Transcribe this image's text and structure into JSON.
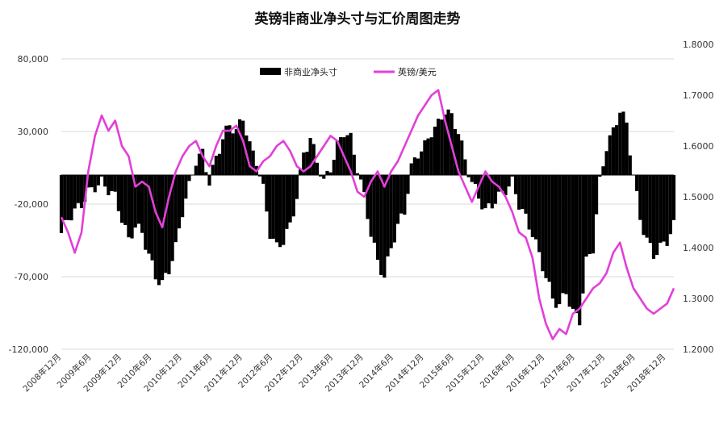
{
  "chart_data": {
    "type": "bar+line",
    "title": "英镑非商业净头寸与汇价周图走势",
    "x_tick_labels": [
      "2008年12月",
      "2009年6月",
      "2009年12月",
      "2010年6月",
      "2010年12月",
      "2011年6月",
      "2011年12月",
      "2012年6月",
      "2012年12月",
      "2013年6月",
      "2013年12月",
      "2014年6月",
      "2014年12月",
      "2015年6月",
      "2015年12月",
      "2016年6月",
      "2016年12月",
      "2017年6月",
      "2017年12月",
      "2018年6月",
      "2018年12月"
    ],
    "y_left": {
      "ticks": [
        "80,000",
        "30,000",
        "-20,000",
        "-70,000",
        "-120,000"
      ],
      "tick_values": [
        80000,
        30000,
        -20000,
        -70000,
        -120000
      ],
      "range": [
        -120000,
        80000
      ]
    },
    "y_right": {
      "ticks": [
        "1.8000",
        "1.7000",
        "1.6000",
        "1.5000",
        "1.4000",
        "1.3000",
        "1.2000"
      ],
      "tick_values": [
        1.8,
        1.7,
        1.6,
        1.5,
        1.4,
        1.3,
        1.2
      ],
      "range": [
        1.2,
        1.8
      ]
    },
    "legend": {
      "position": "top-center"
    },
    "grid": true,
    "series": [
      {
        "name": "非商业净头寸",
        "axis": "left",
        "kind": "bar",
        "color": "#000000",
        "points": [
          [
            0,
            -40000
          ],
          [
            2,
            -30000
          ],
          [
            4,
            -25000
          ],
          [
            6,
            -20000
          ],
          [
            8,
            -12000
          ],
          [
            10,
            -8000
          ],
          [
            12,
            -5000
          ],
          [
            14,
            -10000
          ],
          [
            16,
            -15000
          ],
          [
            18,
            -30000
          ],
          [
            20,
            -45000
          ],
          [
            22,
            -35000
          ],
          [
            24,
            -40000
          ],
          [
            26,
            -55000
          ],
          [
            28,
            -70000
          ],
          [
            30,
            -75000
          ],
          [
            32,
            -65000
          ],
          [
            34,
            -50000
          ],
          [
            36,
            -25000
          ],
          [
            38,
            -8000
          ],
          [
            40,
            10000
          ],
          [
            42,
            15000
          ],
          [
            44,
            -5000
          ],
          [
            46,
            12000
          ],
          [
            48,
            25000
          ],
          [
            50,
            35000
          ],
          [
            52,
            30000
          ],
          [
            54,
            40000
          ],
          [
            56,
            20000
          ],
          [
            58,
            10000
          ],
          [
            60,
            -10000
          ],
          [
            62,
            -40000
          ],
          [
            64,
            -50000
          ],
          [
            66,
            -45000
          ],
          [
            68,
            -35000
          ],
          [
            70,
            -15000
          ],
          [
            72,
            15000
          ],
          [
            74,
            25000
          ],
          [
            76,
            10000
          ],
          [
            78,
            -5000
          ],
          [
            80,
            5000
          ],
          [
            82,
            20000
          ],
          [
            84,
            30000
          ],
          [
            86,
            25000
          ],
          [
            88,
            5000
          ],
          [
            90,
            -15000
          ],
          [
            92,
            -40000
          ],
          [
            94,
            -60000
          ],
          [
            96,
            -70000
          ],
          [
            98,
            -50000
          ],
          [
            100,
            -35000
          ],
          [
            102,
            -25000
          ],
          [
            104,
            5000
          ],
          [
            106,
            15000
          ],
          [
            108,
            20000
          ],
          [
            110,
            30000
          ],
          [
            112,
            35000
          ],
          [
            114,
            45000
          ],
          [
            116,
            40000
          ],
          [
            118,
            30000
          ],
          [
            120,
            10000
          ],
          [
            122,
            -5000
          ],
          [
            124,
            -15000
          ],
          [
            126,
            -25000
          ],
          [
            128,
            -20000
          ],
          [
            130,
            -15000
          ],
          [
            132,
            -10000
          ],
          [
            134,
            -5000
          ],
          [
            136,
            -20000
          ],
          [
            138,
            -30000
          ],
          [
            140,
            -40000
          ],
          [
            142,
            -55000
          ],
          [
            144,
            -70000
          ],
          [
            146,
            -85000
          ],
          [
            148,
            -90000
          ],
          [
            150,
            -80000
          ],
          [
            152,
            -95000
          ],
          [
            154,
            -100000
          ],
          [
            156,
            -60000
          ],
          [
            158,
            -50000
          ],
          [
            160,
            -5000
          ],
          [
            162,
            20000
          ],
          [
            164,
            30000
          ],
          [
            166,
            45000
          ],
          [
            168,
            35000
          ],
          [
            170,
            0
          ],
          [
            172,
            -30000
          ],
          [
            174,
            -45000
          ],
          [
            176,
            -55000
          ],
          [
            178,
            -50000
          ],
          [
            180,
            -45000
          ],
          [
            182,
            -35000
          ]
        ]
      },
      {
        "name": "英镑/美元",
        "axis": "right",
        "kind": "line",
        "color": "#e23fd8",
        "points": [
          [
            0,
            1.46
          ],
          [
            2,
            1.43
          ],
          [
            4,
            1.39
          ],
          [
            6,
            1.43
          ],
          [
            8,
            1.55
          ],
          [
            10,
            1.62
          ],
          [
            12,
            1.66
          ],
          [
            14,
            1.63
          ],
          [
            16,
            1.65
          ],
          [
            18,
            1.6
          ],
          [
            20,
            1.58
          ],
          [
            22,
            1.52
          ],
          [
            24,
            1.53
          ],
          [
            26,
            1.52
          ],
          [
            28,
            1.47
          ],
          [
            30,
            1.44
          ],
          [
            32,
            1.5
          ],
          [
            34,
            1.55
          ],
          [
            36,
            1.58
          ],
          [
            38,
            1.6
          ],
          [
            40,
            1.61
          ],
          [
            42,
            1.58
          ],
          [
            44,
            1.56
          ],
          [
            46,
            1.6
          ],
          [
            48,
            1.63
          ],
          [
            50,
            1.63
          ],
          [
            52,
            1.64
          ],
          [
            54,
            1.61
          ],
          [
            56,
            1.56
          ],
          [
            58,
            1.55
          ],
          [
            60,
            1.57
          ],
          [
            62,
            1.58
          ],
          [
            64,
            1.6
          ],
          [
            66,
            1.61
          ],
          [
            68,
            1.59
          ],
          [
            70,
            1.56
          ],
          [
            72,
            1.55
          ],
          [
            74,
            1.56
          ],
          [
            76,
            1.58
          ],
          [
            78,
            1.6
          ],
          [
            80,
            1.62
          ],
          [
            82,
            1.61
          ],
          [
            84,
            1.58
          ],
          [
            86,
            1.55
          ],
          [
            88,
            1.51
          ],
          [
            90,
            1.5
          ],
          [
            92,
            1.53
          ],
          [
            94,
            1.55
          ],
          [
            96,
            1.52
          ],
          [
            98,
            1.55
          ],
          [
            100,
            1.57
          ],
          [
            102,
            1.6
          ],
          [
            104,
            1.63
          ],
          [
            106,
            1.66
          ],
          [
            108,
            1.68
          ],
          [
            110,
            1.7
          ],
          [
            112,
            1.71
          ],
          [
            114,
            1.65
          ],
          [
            116,
            1.6
          ],
          [
            118,
            1.55
          ],
          [
            120,
            1.52
          ],
          [
            122,
            1.49
          ],
          [
            124,
            1.52
          ],
          [
            126,
            1.55
          ],
          [
            128,
            1.53
          ],
          [
            130,
            1.52
          ],
          [
            132,
            1.5
          ],
          [
            134,
            1.47
          ],
          [
            136,
            1.43
          ],
          [
            138,
            1.42
          ],
          [
            140,
            1.38
          ],
          [
            142,
            1.3
          ],
          [
            144,
            1.25
          ],
          [
            146,
            1.22
          ],
          [
            148,
            1.24
          ],
          [
            150,
            1.23
          ],
          [
            152,
            1.27
          ],
          [
            154,
            1.28
          ],
          [
            156,
            1.3
          ],
          [
            158,
            1.32
          ],
          [
            160,
            1.33
          ],
          [
            162,
            1.35
          ],
          [
            164,
            1.39
          ],
          [
            166,
            1.41
          ],
          [
            168,
            1.36
          ],
          [
            170,
            1.32
          ],
          [
            172,
            1.3
          ],
          [
            174,
            1.28
          ],
          [
            176,
            1.27
          ],
          [
            178,
            1.28
          ],
          [
            180,
            1.29
          ],
          [
            182,
            1.32
          ]
        ]
      }
    ]
  }
}
